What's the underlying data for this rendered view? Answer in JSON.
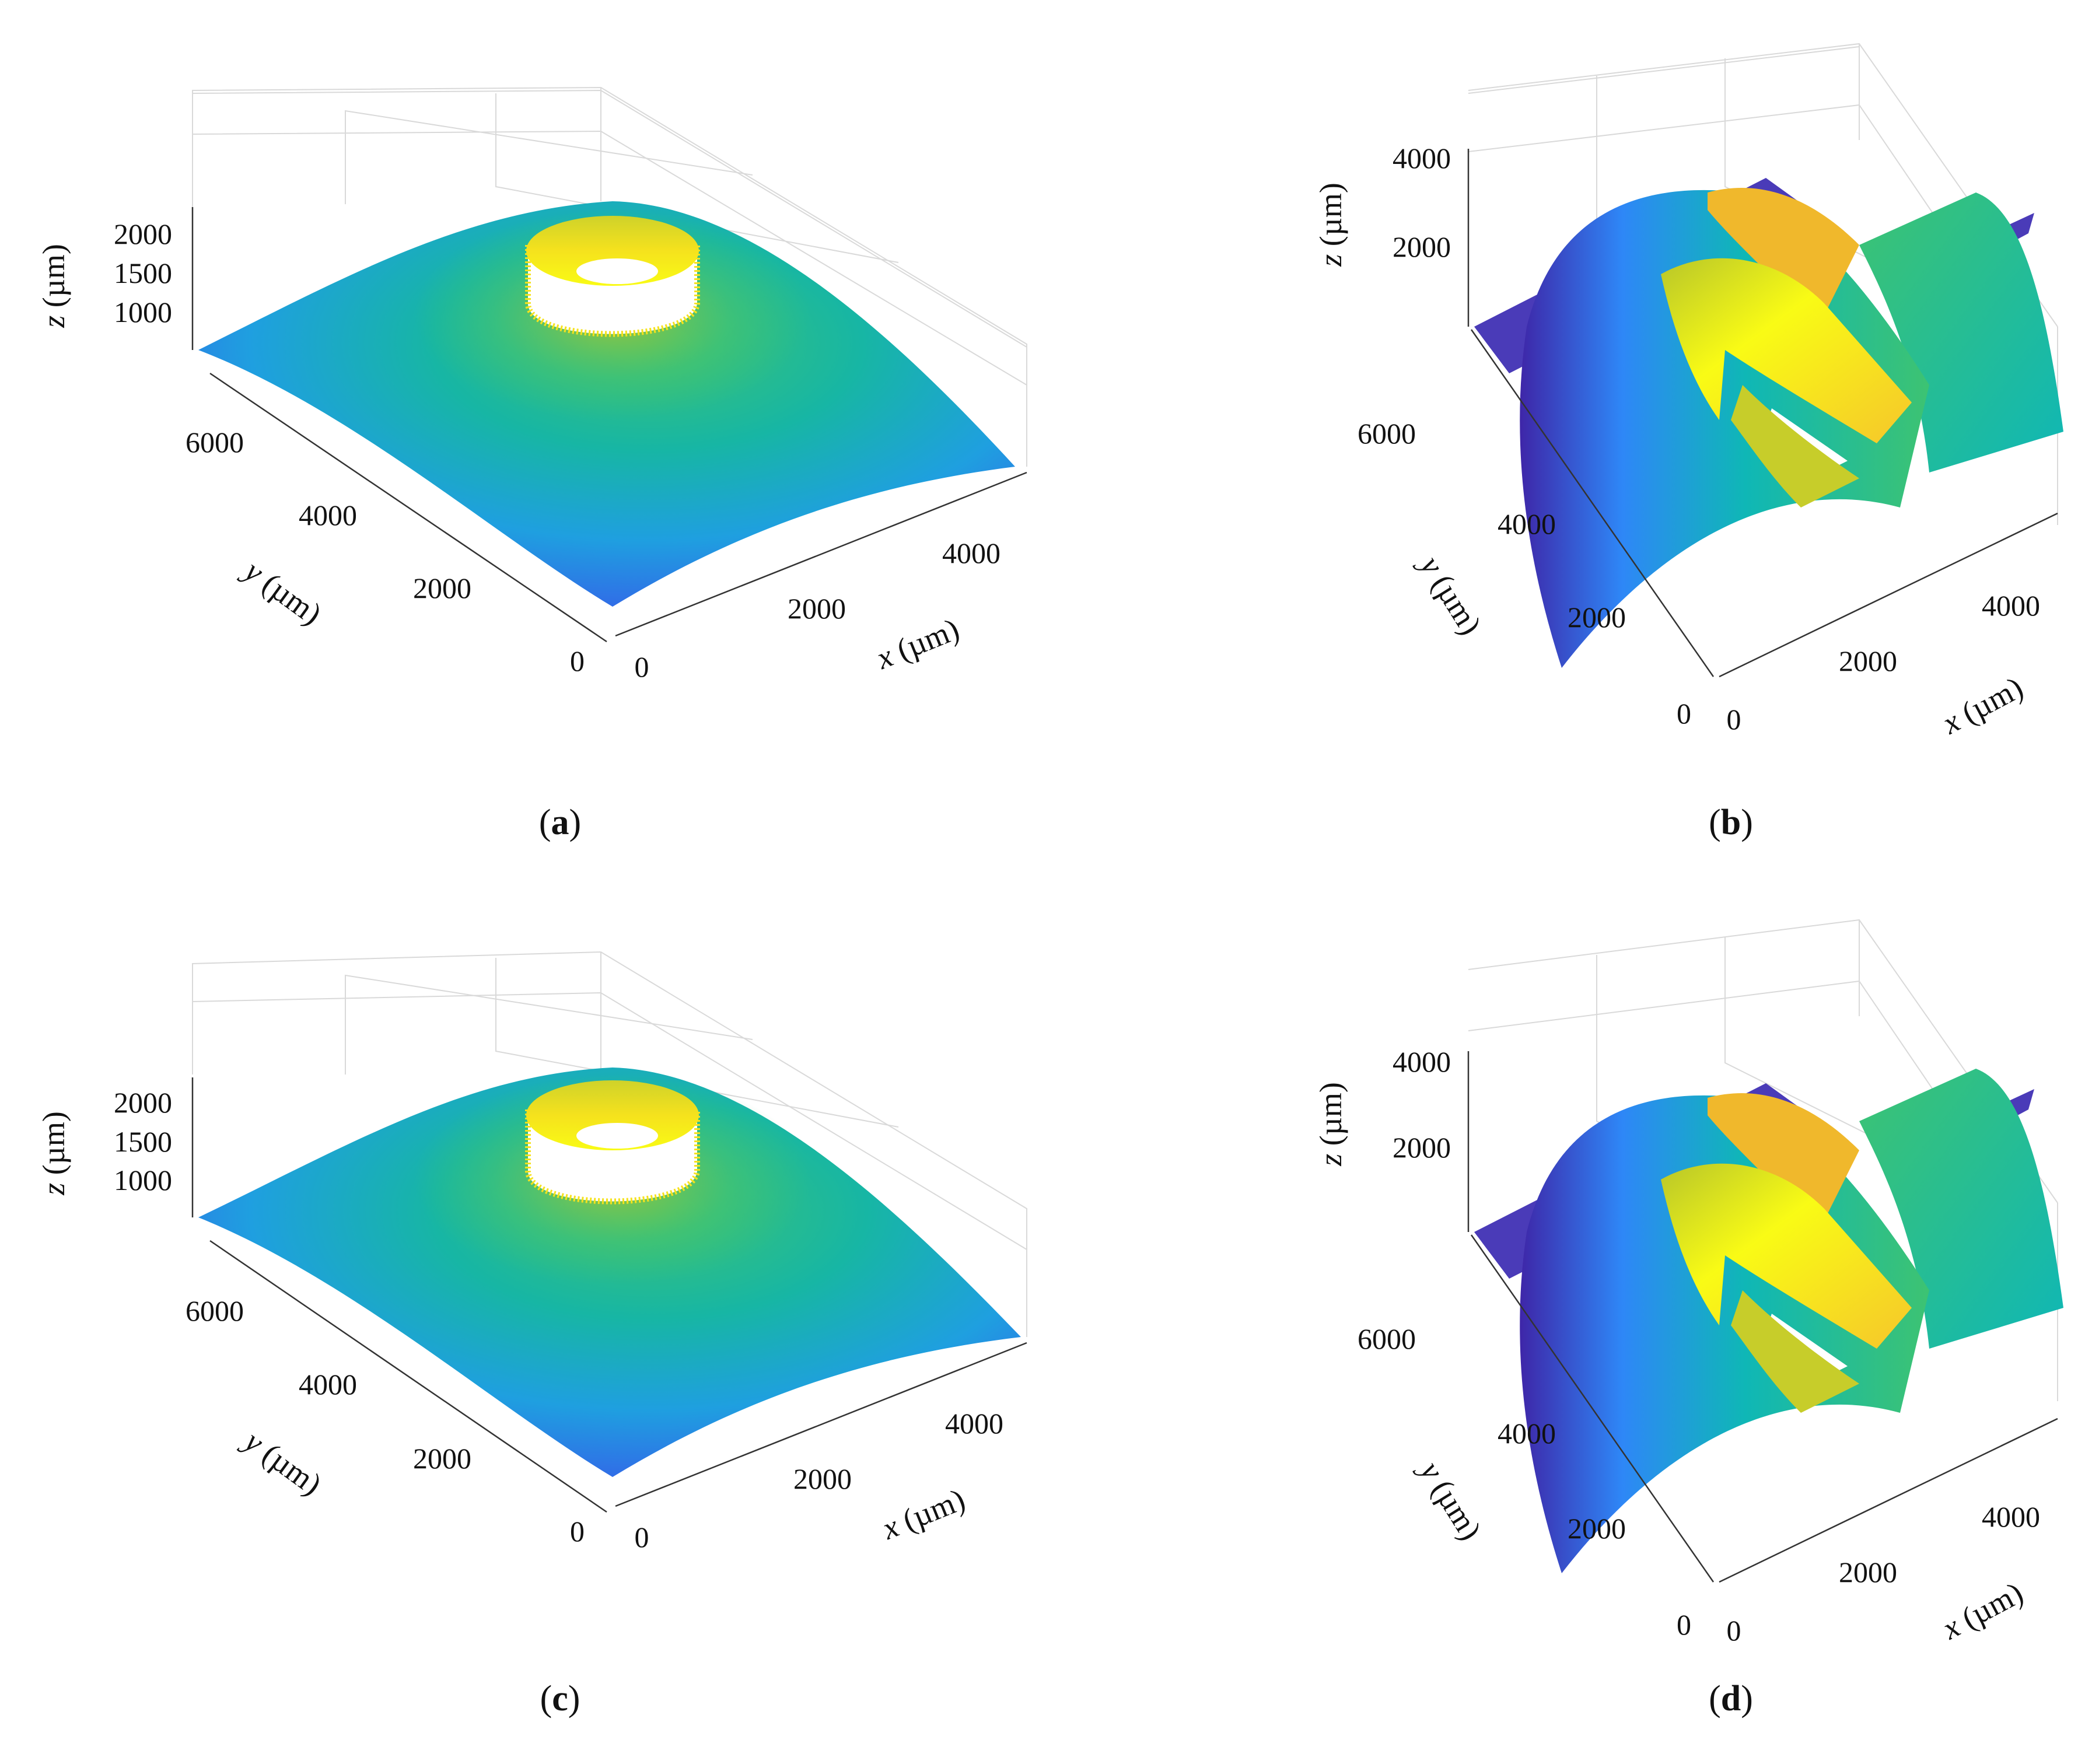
{
  "colormap": [
    "#3e26a8",
    "#2e87f7",
    "#0fb7b6",
    "#3dc372",
    "#b8c629",
    "#f5c62b",
    "#f9fb15"
  ],
  "captions": {
    "a": {
      "open": "(",
      "letter": "a",
      "close": ")"
    },
    "b": {
      "open": "(",
      "letter": "b",
      "close": ")"
    },
    "c": {
      "open": "(",
      "letter": "c",
      "close": ")"
    },
    "d": {
      "open": "(",
      "letter": "d",
      "close": ")"
    }
  },
  "chart_data": [
    {
      "id": "a",
      "type": "scatter",
      "caption": "(a)",
      "xlabel": {
        "var": "x",
        "unit": " (µm)"
      },
      "ylabel": {
        "var": "y",
        "unit": " (µm)"
      },
      "zlabel": {
        "var": "z",
        "unit": " (µm)"
      },
      "xticks": [
        "0",
        "2000",
        "4000"
      ],
      "yticks": [
        "0",
        "2000",
        "4000",
        "6000"
      ],
      "zticks": [
        "1000",
        "1500",
        "2000"
      ],
      "xlim": [
        0,
        5000
      ],
      "ylim": [
        0,
        7000
      ],
      "zlim": [
        700,
        2300
      ],
      "grid": true,
      "shape": "convex dome with raised ring (torus) near center",
      "ring_height": 2100,
      "dome_peak": 1350,
      "colormap": "parula"
    },
    {
      "id": "b",
      "type": "scatter",
      "caption": "(b)",
      "xlabel": {
        "var": "x",
        "unit": " (µm)"
      },
      "ylabel": {
        "var": "y",
        "unit": " (µm)"
      },
      "zlabel": {
        "var": "z",
        "unit": " (µm)"
      },
      "xticks": [
        "0",
        "2000",
        "4000"
      ],
      "yticks": [
        "0",
        "2000",
        "4000",
        "6000"
      ],
      "zticks": [
        "2000",
        "4000"
      ],
      "xlim": [
        0,
        5000
      ],
      "ylim": [
        0,
        7000
      ],
      "zlim": [
        0,
        4500
      ],
      "grid": true,
      "shape": "curved ridge surface with raised curved bands, flat base plate",
      "colormap": "parula"
    },
    {
      "id": "c",
      "type": "scatter",
      "caption": "(c)",
      "xlabel": {
        "var": "x",
        "unit": " (µm)"
      },
      "ylabel": {
        "var": "y",
        "unit": " (µm)"
      },
      "zlabel": {
        "var": "z",
        "unit": " (µm)"
      },
      "xticks": [
        "0",
        "2000",
        "4000"
      ],
      "yticks": [
        "0",
        "2000",
        "4000",
        "6000"
      ],
      "zticks": [
        "1000",
        "1500",
        "2000"
      ],
      "xlim": [
        0,
        5000
      ],
      "ylim": [
        0,
        7000
      ],
      "zlim": [
        700,
        2300
      ],
      "grid": true,
      "shape": "convex dome with raised ring (torus) near center",
      "ring_height": 2100,
      "dome_peak": 1350,
      "colormap": "parula"
    },
    {
      "id": "d",
      "type": "scatter",
      "caption": "(d)",
      "xlabel": {
        "var": "x",
        "unit": " (µm)"
      },
      "ylabel": {
        "var": "y",
        "unit": " (µm)"
      },
      "zlabel": {
        "var": "z",
        "unit": " (µm)"
      },
      "xticks": [
        "0",
        "2000",
        "4000"
      ],
      "yticks": [
        "0",
        "2000",
        "4000",
        "6000"
      ],
      "zticks": [
        "2000",
        "4000"
      ],
      "xlim": [
        0,
        5000
      ],
      "ylim": [
        0,
        7000
      ],
      "zlim": [
        0,
        4500
      ],
      "grid": true,
      "shape": "curved ridge surface with raised curved bands, flat base plate",
      "colormap": "parula"
    }
  ]
}
